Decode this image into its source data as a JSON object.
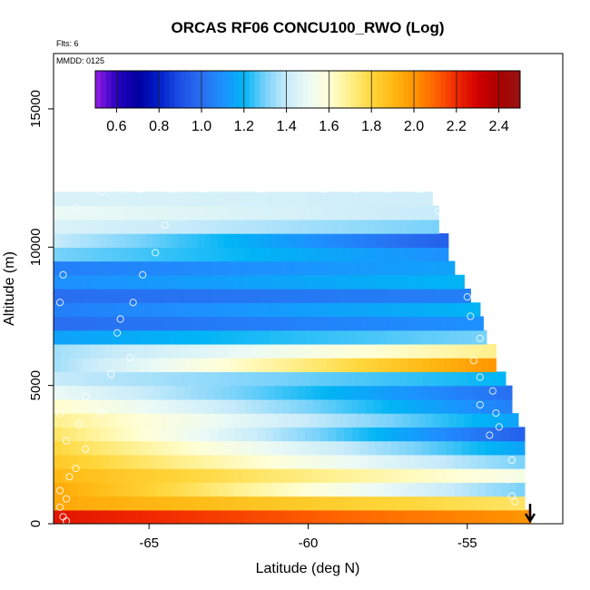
{
  "chart_data": {
    "type": "heatmap",
    "title": "ORCAS RF06 CONCU100_RWO (Log)",
    "xlabel": "Latitude (deg N)",
    "ylabel": "Altitude (m)",
    "xlim": [
      -68.0,
      -52.0
    ],
    "ylim": [
      0,
      17000
    ],
    "x_ticks": [
      -65,
      -60,
      -55
    ],
    "y_ticks": [
      0,
      5000,
      10000,
      15000
    ],
    "flights_label": "Flts: 6",
    "date_label": "MMDD: 0125",
    "colorbar": {
      "min": 0.5,
      "max": 2.5,
      "ticks": [
        0.6,
        0.8,
        1.0,
        1.2,
        1.4,
        1.6,
        1.8,
        2.0,
        2.2,
        2.4
      ],
      "tick_labels": [
        "0.6",
        "0.8",
        "1.0",
        "1.2",
        "1.4",
        "1.6",
        "1.8",
        "2.0",
        "2.2",
        "2.4"
      ]
    },
    "layers": [
      {
        "alt": 250,
        "lat_end": -53.0,
        "v_south": 2.25,
        "v_north": 2.0
      },
      {
        "alt": 750,
        "lat_end": -53.2,
        "v_south": 1.95,
        "v_north": 1.75
      },
      {
        "alt": 1250,
        "lat_end": -53.2,
        "v_south": 1.95,
        "v_north": 1.3
      },
      {
        "alt": 1750,
        "lat_end": -53.2,
        "v_south": 1.9,
        "v_north": 1.55
      },
      {
        "alt": 2250,
        "lat_end": -53.2,
        "v_south": 1.85,
        "v_north": 1.3
      },
      {
        "alt": 2750,
        "lat_end": -53.2,
        "v_south": 1.8,
        "v_north": 1.15
      },
      {
        "alt": 3250,
        "lat_end": -53.2,
        "v_south": 1.75,
        "v_north": 0.95
      },
      {
        "alt": 3750,
        "lat_end": -53.4,
        "v_south": 1.7,
        "v_north": 1.15
      },
      {
        "alt": 4250,
        "lat_end": -53.6,
        "v_south": 1.62,
        "v_north": 1.05
      },
      {
        "alt": 4750,
        "lat_end": -53.6,
        "v_south": 1.5,
        "v_north": 1.0
      },
      {
        "alt": 5250,
        "lat_end": -53.8,
        "v_south": 1.4,
        "v_north": 1.2
      },
      {
        "alt": 5750,
        "lat_end": -54.1,
        "v_south": 1.35,
        "v_north": 2.0
      },
      {
        "alt": 6250,
        "lat_end": -54.1,
        "v_south": 1.35,
        "v_north": 1.7
      },
      {
        "alt": 6750,
        "lat_end": -54.4,
        "v_south": 1.15,
        "v_north": 1.3
      },
      {
        "alt": 7250,
        "lat_end": -54.5,
        "v_south": 1.0,
        "v_north": 1.1
      },
      {
        "alt": 7750,
        "lat_end": -54.6,
        "v_south": 1.05,
        "v_north": 1.2
      },
      {
        "alt": 8250,
        "lat_end": -54.9,
        "v_south": 1.0,
        "v_north": 1.05
      },
      {
        "alt": 8750,
        "lat_end": -55.1,
        "v_south": 1.1,
        "v_north": 1.2
      },
      {
        "alt": 9250,
        "lat_end": -55.4,
        "v_south": 1.05,
        "v_north": 1.15
      },
      {
        "alt": 9750,
        "lat_end": -55.6,
        "v_south": 1.3,
        "v_north": 1.1
      },
      {
        "alt": 10250,
        "lat_end": -55.6,
        "v_south": 1.4,
        "v_north": 0.95
      },
      {
        "alt": 10750,
        "lat_end": -55.9,
        "v_south": 1.45,
        "v_north": 1.3
      },
      {
        "alt": 11250,
        "lat_end": -55.9,
        "v_south": 1.5,
        "v_north": 1.4
      },
      {
        "alt": 11750,
        "lat_end": -56.1,
        "v_south": 1.45,
        "v_north": 1.42
      }
    ],
    "observation_points": [
      [
        -67.6,
        100
      ],
      [
        -67.7,
        250
      ],
      [
        -67.8,
        600
      ],
      [
        -67.6,
        900
      ],
      [
        -67.8,
        1200
      ],
      [
        -67.5,
        1700
      ],
      [
        -67.3,
        2000
      ],
      [
        -67.0,
        2700
      ],
      [
        -67.6,
        3000
      ],
      [
        -67.2,
        3600
      ],
      [
        -67.8,
        4000
      ],
      [
        -66.5,
        4000
      ],
      [
        -67.0,
        4600
      ],
      [
        -66.2,
        5400
      ],
      [
        -65.6,
        6000
      ],
      [
        -66.0,
        6900
      ],
      [
        -65.9,
        7400
      ],
      [
        -65.5,
        8000
      ],
      [
        -67.8,
        8000
      ],
      [
        -67.7,
        9000
      ],
      [
        -65.2,
        9000
      ],
      [
        -64.8,
        9800
      ],
      [
        -64.5,
        10800
      ],
      [
        -67.3,
        11400
      ],
      [
        -66.5,
        12000
      ],
      [
        -65.3,
        12100
      ],
      [
        -64.2,
        12100
      ],
      [
        -63.3,
        12100
      ],
      [
        -61.5,
        12100
      ],
      [
        -59.5,
        12100
      ],
      [
        -58.5,
        12100
      ],
      [
        -57.5,
        12100
      ],
      [
        -56.5,
        12100
      ],
      [
        -55.6,
        11000
      ],
      [
        -55.9,
        11300
      ],
      [
        -55.2,
        9300
      ],
      [
        -55.0,
        8200
      ],
      [
        -54.9,
        7500
      ],
      [
        -54.6,
        6700
      ],
      [
        -54.8,
        5900
      ],
      [
        -54.6,
        5300
      ],
      [
        -54.2,
        4800
      ],
      [
        -54.6,
        4300
      ],
      [
        -54.1,
        4000
      ],
      [
        -54.0,
        3500
      ],
      [
        -54.3,
        3200
      ],
      [
        -53.6,
        2300
      ],
      [
        -53.7,
        1600
      ],
      [
        -53.6,
        1000
      ],
      [
        -53.5,
        800
      ]
    ]
  }
}
